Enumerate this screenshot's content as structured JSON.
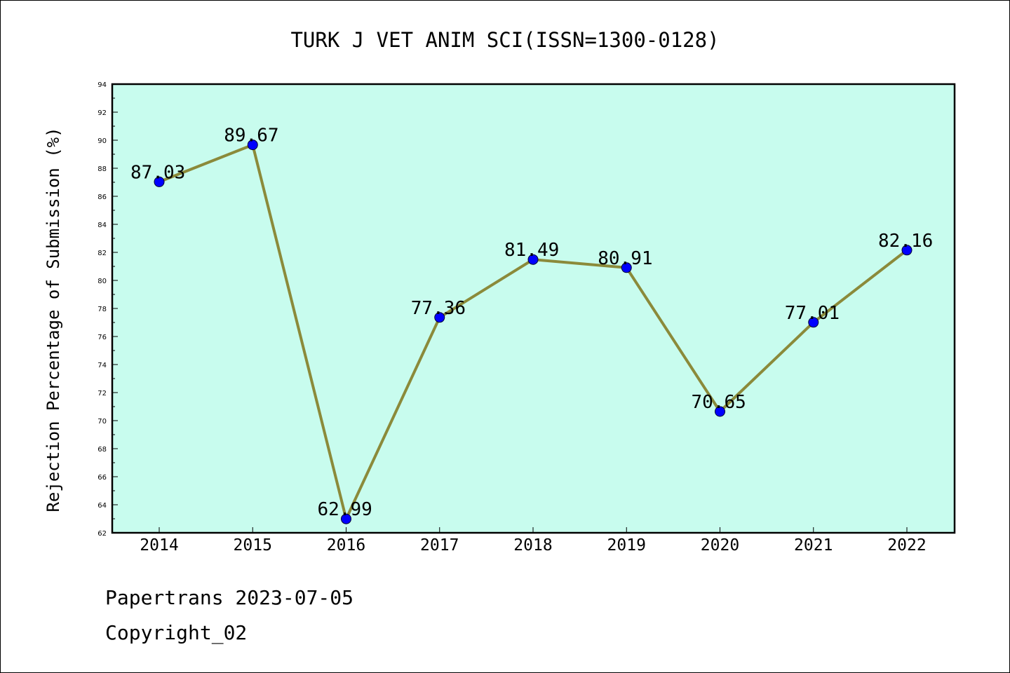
{
  "chart_data": {
    "type": "line",
    "title": "TURK J VET ANIM SCI(ISSN=1300-0128)",
    "xlabel": "",
    "ylabel": "Rejection Percentage of Submission (%)",
    "categories": [
      "2014",
      "2015",
      "2016",
      "2017",
      "2018",
      "2019",
      "2020",
      "2021",
      "2022"
    ],
    "values": [
      87.03,
      89.67,
      62.99,
      77.36,
      81.49,
      80.91,
      70.65,
      77.01,
      82.16
    ],
    "ylim": [
      62,
      94
    ],
    "yticks": [
      62,
      64,
      66,
      68,
      70,
      72,
      74,
      76,
      78,
      80,
      82,
      84,
      86,
      88,
      90,
      92,
      94
    ],
    "grid": false,
    "legend": "none",
    "colors": {
      "plot_background": "#c8fcee",
      "line": "#8b8a3a",
      "marker": "#0000ff"
    }
  },
  "footer": {
    "line1": "Papertrans 2023-07-05",
    "line2": "Copyright_02"
  }
}
